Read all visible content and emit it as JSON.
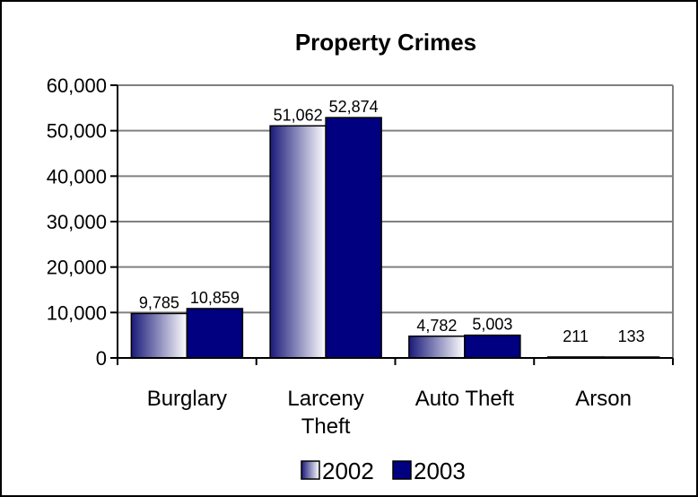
{
  "chart_data": {
    "type": "bar",
    "title": "Property Crimes",
    "categories": [
      [
        "Burglary"
      ],
      [
        "Larceny",
        "Theft"
      ],
      [
        "Auto Theft"
      ],
      [
        "Arson"
      ]
    ],
    "series": [
      {
        "name": "2002",
        "values": [
          9785,
          51062,
          4782,
          211
        ],
        "labels": [
          "9,785",
          "51,062",
          "4,782",
          "211"
        ],
        "fill": "gradient",
        "color": "#1a1a7a"
      },
      {
        "name": "2003",
        "values": [
          10859,
          52874,
          5003,
          133
        ],
        "labels": [
          "10,859",
          "52,874",
          "5,003",
          "133"
        ],
        "fill": "solid",
        "color": "#000080"
      }
    ],
    "ylim": [
      0,
      60000
    ],
    "yticks": [
      0,
      10000,
      20000,
      30000,
      40000,
      50000,
      60000
    ],
    "ytick_labels": [
      "0",
      "10,000",
      "20,000",
      "30,000",
      "40,000",
      "50,000",
      "60,000"
    ],
    "grid": true,
    "legend_position": "bottom",
    "colors": {
      "frame": "#000000",
      "gridline": "#808080",
      "series_2002_gradient_dark": "#1a1a7a",
      "series_2002_gradient_light": "#ffffff",
      "series_2003": "#000080"
    }
  }
}
